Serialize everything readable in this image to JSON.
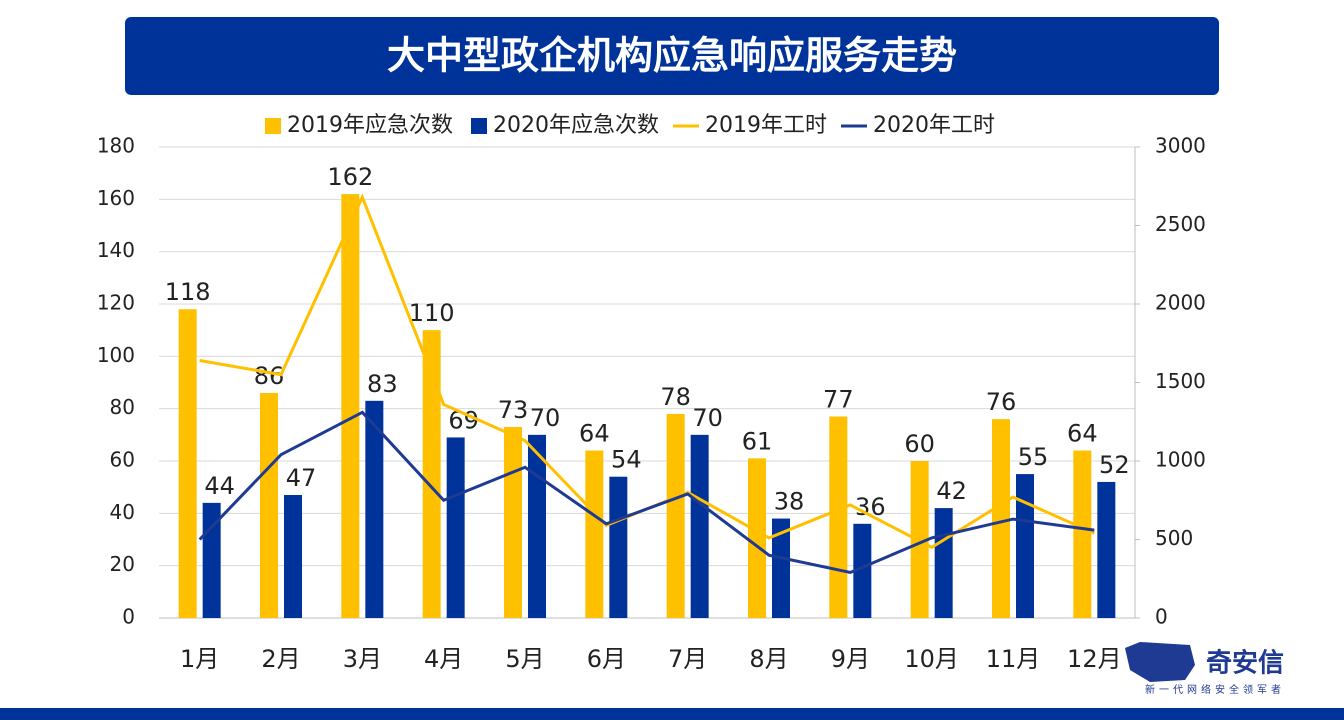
{
  "chart_data": {
    "type": "bar-line",
    "title": "大中型政企机构应急响应服务走势",
    "categories": [
      "1月",
      "2月",
      "3月",
      "4月",
      "5月",
      "6月",
      "7月",
      "8月",
      "9月",
      "10月",
      "11月",
      "12月"
    ],
    "series": [
      {
        "name": "2019年应急次数",
        "kind": "bar",
        "color": "#ffc000",
        "values": [
          118,
          86,
          162,
          110,
          73,
          64,
          78,
          61,
          77,
          60,
          76,
          64
        ]
      },
      {
        "name": "2020年应急次数",
        "kind": "bar",
        "color": "#003399",
        "values": [
          44,
          47,
          83,
          69,
          70,
          54,
          70,
          38,
          36,
          42,
          55,
          52
        ]
      },
      {
        "name": "2019年工时",
        "kind": "line",
        "axis": "y2",
        "color": "#ffc000",
        "values": [
          1640,
          1550,
          2680,
          1360,
          1130,
          590,
          800,
          510,
          720,
          450,
          770,
          540
        ]
      },
      {
        "name": "2020年工时",
        "kind": "line",
        "axis": "y2",
        "color": "#1f3a93",
        "values": [
          500,
          1040,
          1310,
          750,
          960,
          600,
          790,
          400,
          290,
          510,
          630,
          560
        ]
      }
    ],
    "ylim": [
      0,
      180
    ],
    "yticks": [
      0,
      20,
      40,
      60,
      80,
      100,
      120,
      140,
      160,
      180
    ],
    "y2lim": [
      0,
      3000
    ],
    "y2ticks": [
      0,
      500,
      1000,
      1500,
      2000,
      2500,
      3000
    ],
    "grid": true,
    "legend": "top",
    "logo": {
      "name": "奇安信",
      "slogan": "新一代网络安全领军者"
    }
  }
}
